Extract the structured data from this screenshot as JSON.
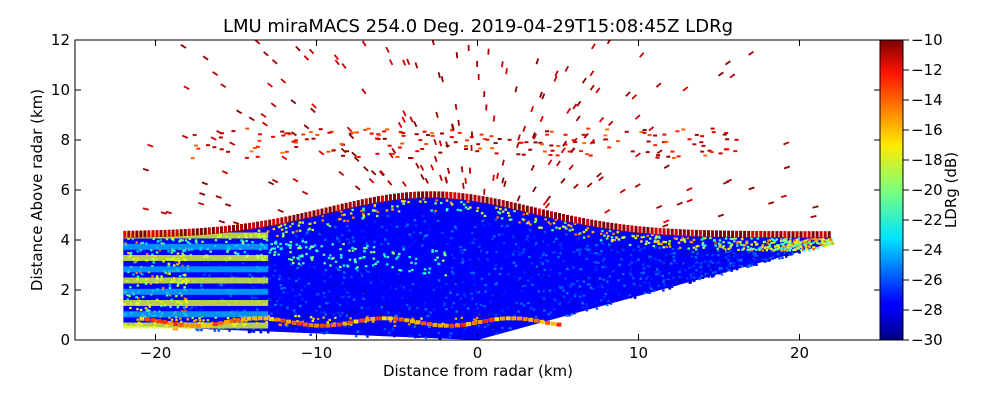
{
  "chart_data": {
    "type": "heatmap",
    "title": "LMU miraMACS 254.0 Deg. 2019-04-29T15:08:45Z  LDRg",
    "xlabel": "Distance from radar (km)",
    "ylabel": "Distance Above radar  (km)",
    "xlim": [
      -25,
      25
    ],
    "ylim": [
      0,
      12
    ],
    "x_ticks": [
      -20,
      -10,
      0,
      10,
      20
    ],
    "x_tick_labels": [
      "−20",
      "−10",
      "0",
      "10",
      "20"
    ],
    "y_ticks": [
      0,
      2,
      4,
      6,
      8,
      10,
      12
    ],
    "y_tick_labels": [
      "0",
      "2",
      "4",
      "6",
      "8",
      "10",
      "12"
    ],
    "colorbar": {
      "label": "LDRg (dB)",
      "range": [
        -30,
        -10
      ],
      "ticks": [
        -10,
        -12,
        -14,
        -16,
        -18,
        -20,
        -22,
        -24,
        -26,
        -28,
        -30
      ],
      "tick_labels": [
        "−10",
        "−12",
        "−14",
        "−16",
        "−18",
        "−20",
        "−22",
        "−24",
        "−26",
        "−28",
        "−30"
      ],
      "colormap": "jet"
    },
    "scan": {
      "azimuth_deg": 254.0,
      "timestamp": "2019-04-29T15:08:45Z",
      "max_range_km": 22,
      "min_elevation_left_deg": 1.5,
      "min_elevation_right_deg": 10
    },
    "features": [
      {
        "name": "stratiform cloud layer",
        "x_range_km": [
          -22,
          22
        ],
        "top_km": [
          4.2,
          5.8
        ],
        "ldr_db": -27
      },
      {
        "name": "melting layer bright band",
        "height_km": 0.8,
        "ldr_db": -17
      },
      {
        "name": "high LDR streak",
        "height_km": 3.0,
        "ldr_db": -21
      },
      {
        "name": "scattered noise / insects",
        "height_km": [
          5,
          12
        ],
        "ldr_db": -10
      },
      {
        "name": "elevated band",
        "height_km": 7.8,
        "ldr_db": -11
      }
    ]
  }
}
